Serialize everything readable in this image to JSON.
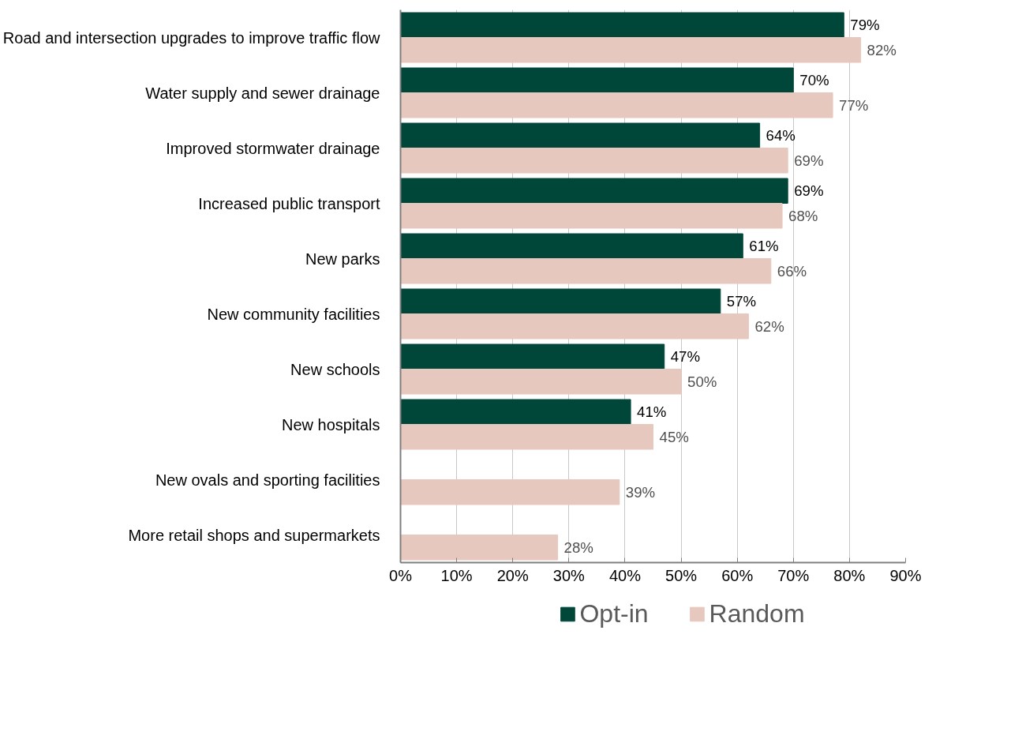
{
  "chart_data": {
    "type": "bar",
    "orientation": "horizontal",
    "categories": [
      "Road and intersection upgrades to improve traffic flow",
      "Water supply and sewer drainage",
      "Improved stormwater drainage",
      "Increased public transport",
      "New parks",
      "New community facilities",
      "New schools",
      "New hospitals",
      "New ovals and sporting facilities",
      "More retail shops and supermarkets"
    ],
    "series": [
      {
        "name": "Opt-in",
        "color": "#00473a",
        "values": [
          79,
          70,
          64,
          69,
          61,
          57,
          47,
          41,
          null,
          null
        ],
        "value_labels": [
          "79%",
          "70%",
          "64%",
          "69%",
          "61%",
          "57%",
          "47%",
          "41%",
          null,
          null
        ]
      },
      {
        "name": "Random",
        "color": "#e6c8be",
        "values": [
          82,
          77,
          69,
          68,
          66,
          62,
          50,
          45,
          39,
          28
        ],
        "value_labels": [
          "82%",
          "77%",
          "69%",
          "68%",
          "66%",
          "62%",
          "50%",
          "45%",
          "39%",
          "28%"
        ]
      }
    ],
    "xlim": [
      0,
      90
    ],
    "xticks": [
      {
        "value": 0,
        "label": "0%"
      },
      {
        "value": 10,
        "label": "10%"
      },
      {
        "value": 20,
        "label": "20%"
      },
      {
        "value": 30,
        "label": "30%"
      },
      {
        "value": 40,
        "label": "40%"
      },
      {
        "value": 50,
        "label": "50%"
      },
      {
        "value": 60,
        "label": "60%"
      },
      {
        "value": 70,
        "label": "70%"
      },
      {
        "value": 80,
        "label": "80%"
      },
      {
        "value": 90,
        "label": "90%"
      }
    ],
    "grid": "x",
    "legend": "bottom"
  }
}
